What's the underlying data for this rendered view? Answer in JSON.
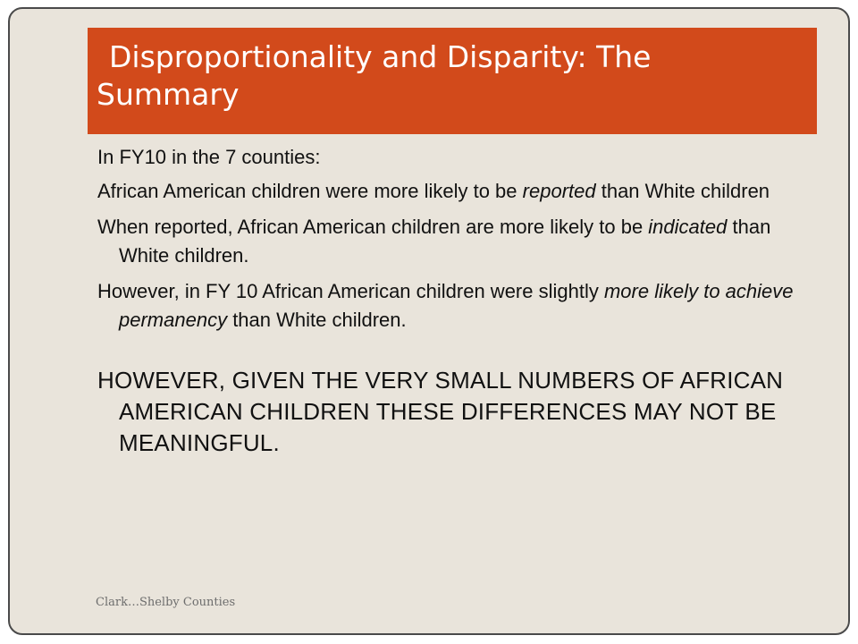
{
  "slide": {
    "title": "Disproportionality and Disparity: The Summary",
    "intro": "In FY10 in the 7 counties:",
    "point1": {
      "before": "African American children were more likely to be ",
      "emphasis": "reported",
      "after": " than White children"
    },
    "point2": {
      "before": "When reported, African American children are more likely to be ",
      "emphasis": "indicated",
      "after": " than White children."
    },
    "point3": {
      "before": "However, in FY 10 African American children were slightly ",
      "emphasis": "more likely to achieve permanency",
      "after": " than  White children."
    },
    "conclusion": "HOWEVER, GIVEN THE VERY SMALL NUMBERS OF AFRICAN AMERICAN CHILDREN THESE DIFFERENCES MAY NOT BE MEANINGFUL.",
    "footer": "Clark…Shelby Counties"
  },
  "colors": {
    "title_bar": "#d24a1b",
    "background": "#e9e4db",
    "border": "#4a4a4a"
  }
}
